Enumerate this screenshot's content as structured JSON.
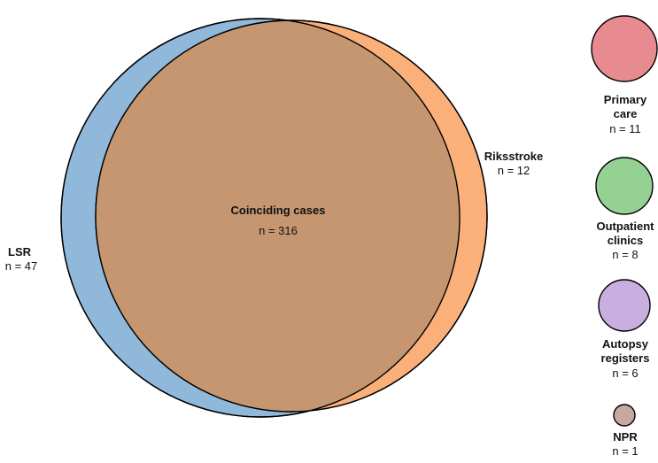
{
  "venn": {
    "lsr": {
      "label": "LSR",
      "count": "n = 47",
      "color": "#8fb8da"
    },
    "riksstroke": {
      "label": "Riksstroke",
      "count": "n = 12",
      "color": "#fbb07a"
    },
    "overlap": {
      "label": "Coinciding cases",
      "count": "n = 316",
      "color": "#c59670"
    }
  },
  "legend": [
    {
      "line1": "Primary",
      "line2": "care",
      "count": "n = 11",
      "color": "#e88b90",
      "icon": "pink-circle"
    },
    {
      "line1": "Outpatient",
      "line2": "clinics",
      "count": "n = 8",
      "color": "#96d194",
      "icon": "green-circle"
    },
    {
      "line1": "Autopsy",
      "line2": "registers",
      "count": "n = 6",
      "color": "#c9aee0",
      "icon": "purple-circle"
    },
    {
      "line1": "NPR",
      "line2": "",
      "count": "n = 1",
      "color": "#c9a7a0",
      "icon": "tan-circle"
    }
  ]
}
